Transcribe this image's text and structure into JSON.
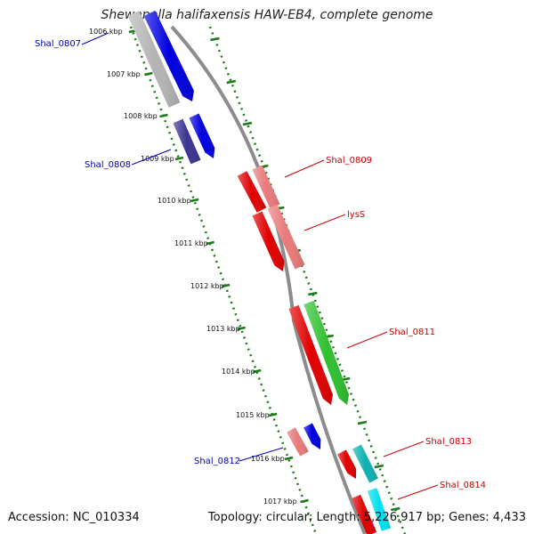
{
  "title": "Shewanella halifaxensis HAW-EB4, complete genome",
  "footer": {
    "accession": "Accession: NC_010334",
    "summary": "Topology: circular; Length: 5,226,917 bp; Genes: 4,433"
  },
  "colors": {
    "background": "#ffffff",
    "backbone": "#8c8c8c",
    "tick": "#1a7a1a",
    "label_forward": "#cc0000",
    "label_reverse": "#0000bb"
  },
  "ticks": [
    {
      "label": "1006 kbp"
    },
    {
      "label": "1007 kbp"
    },
    {
      "label": "1008 kbp"
    },
    {
      "label": "1009 kbp"
    },
    {
      "label": "1010 kbp"
    },
    {
      "label": "1011 kbp"
    },
    {
      "label": "1012 kbp"
    },
    {
      "label": "1013 kbp"
    },
    {
      "label": "1014 kbp"
    },
    {
      "label": "1015 kbp"
    },
    {
      "label": "1016 kbp"
    },
    {
      "label": "1017 kbp"
    }
  ],
  "gene_labels": {
    "left": [
      "Shal_0807",
      "Shal_0808",
      "Shal_0812"
    ],
    "right": [
      "Shal_0809",
      "lysS",
      "Shal_0811",
      "Shal_0813",
      "Shal_0814"
    ]
  },
  "features": [
    {
      "name": "feature-grey",
      "color": "#b4b4b4"
    },
    {
      "name": "feature-blue-1",
      "color": "#0000e0"
    },
    {
      "name": "feature-navy",
      "color": "#3a3490"
    },
    {
      "name": "feature-blue-2",
      "color": "#0000e0"
    },
    {
      "name": "feature-red-1",
      "color": "#e00000"
    },
    {
      "name": "feature-pink-1",
      "color": "#e87a7a"
    },
    {
      "name": "feature-red-2",
      "color": "#e00000"
    },
    {
      "name": "feature-pink-2",
      "color": "#e87a7a"
    },
    {
      "name": "feature-red-3",
      "color": "#e00000"
    },
    {
      "name": "feature-green",
      "color": "#30c030"
    },
    {
      "name": "feature-pink-3",
      "color": "#e87a7a"
    },
    {
      "name": "feature-blue-3",
      "color": "#0000e0"
    },
    {
      "name": "feature-red-4",
      "color": "#e00000"
    },
    {
      "name": "feature-teal",
      "color": "#10b0b0"
    },
    {
      "name": "feature-red-5",
      "color": "#e00000"
    },
    {
      "name": "feature-cyan",
      "color": "#00e0f0"
    }
  ]
}
